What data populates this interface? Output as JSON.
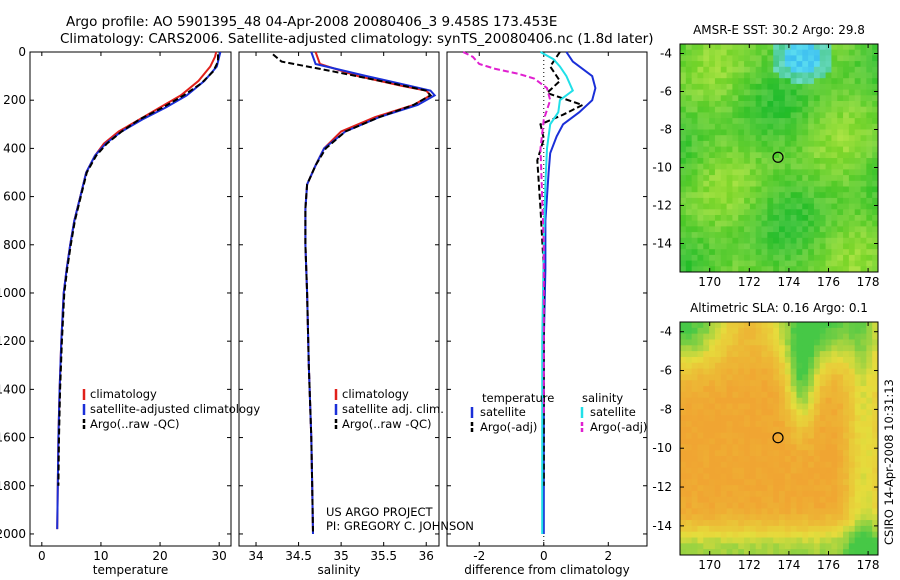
{
  "header": {
    "line1": "Argo profile: AO 5901395_48 04-Apr-2008 20080406_3 9.458S 173.453E",
    "line2": "Climatology: CARS2006. Satellite-adjusted climatology: synTS_20080406.nc (1.8d later)"
  },
  "colors": {
    "climatology": "#e0201a",
    "satellite": "#1a2fd8",
    "argo": "#000000",
    "satellite_diff": "#20e0e8",
    "argo_salinity_diff": "#e020d0",
    "sst_green": "#3cc83c",
    "sla_orange": "#f0a830"
  },
  "annotations": {
    "project": "US ARGO PROJECT",
    "pi": "PI: GREGORY C. JOHNSON",
    "side_label": "CSIRO 14-Apr-2008 10:31:13"
  },
  "chart_data": [
    {
      "id": "temperature",
      "type": "line",
      "xlabel": "temperature",
      "ylabel": "",
      "xlim": [
        -2,
        32
      ],
      "ylim": [
        0,
        2050
      ],
      "y_inverted": true,
      "xticks": [
        0,
        10,
        20,
        30
      ],
      "xtick_labels": [
        "0",
        "10",
        "20",
        "30"
      ],
      "yticks": [
        0,
        200,
        400,
        600,
        800,
        1000,
        1200,
        1400,
        1600,
        1800,
        2000
      ],
      "ytick_labels": [
        "0",
        "200",
        "400",
        "600",
        "800",
        "1000",
        "1200",
        "1400",
        "1600",
        "1800",
        "2000"
      ],
      "legend": [
        "climatology",
        "satellite-adjusted climatology",
        "Argo(..raw -QC)"
      ],
      "legend_position": "lower-middle",
      "series": [
        {
          "name": "climatology",
          "style": "solid",
          "color_key": "climatology",
          "x": [
            29.5,
            29.3,
            28.5,
            26.5,
            23.5,
            20.0,
            16.5,
            13.0,
            10.5,
            9.0,
            7.5,
            6.5,
            5.5,
            4.8,
            4.2,
            3.7,
            3.3,
            3.0,
            2.8,
            2.7,
            2.6
          ],
          "y": [
            0,
            20,
            60,
            120,
            180,
            230,
            280,
            330,
            380,
            430,
            500,
            600,
            700,
            800,
            900,
            1000,
            1200,
            1400,
            1600,
            1800,
            1980
          ]
        },
        {
          "name": "satellite-adjusted climatology",
          "style": "solid",
          "color_key": "satellite",
          "x": [
            30.2,
            30.0,
            29.6,
            27.5,
            24.5,
            21.0,
            17.0,
            13.5,
            10.8,
            9.0,
            7.5,
            6.5,
            5.5,
            4.8,
            4.2,
            3.7,
            3.3,
            3.0,
            2.8,
            2.7,
            2.6
          ],
          "y": [
            0,
            20,
            60,
            120,
            180,
            230,
            280,
            330,
            380,
            430,
            500,
            600,
            700,
            800,
            900,
            1000,
            1200,
            1400,
            1600,
            1800,
            1980
          ]
        },
        {
          "name": "Argo(..raw -QC)",
          "style": "dashed",
          "color_key": "argo",
          "x": [
            29.8,
            29.8,
            29.0,
            27.0,
            24.0,
            20.5,
            16.5,
            13.5,
            11.0,
            9.2,
            7.6,
            6.6,
            5.6,
            4.9,
            4.3,
            3.8,
            3.4,
            3.1,
            2.9,
            2.8
          ],
          "y": [
            10,
            40,
            80,
            130,
            180,
            230,
            280,
            330,
            380,
            430,
            500,
            600,
            700,
            800,
            900,
            1000,
            1200,
            1400,
            1600,
            1800
          ]
        }
      ]
    },
    {
      "id": "salinity",
      "type": "line",
      "xlabel": "salinity",
      "ylabel": "",
      "xlim": [
        33.8,
        36.15
      ],
      "ylim": [
        0,
        2050
      ],
      "y_inverted": true,
      "xticks": [
        34,
        34.5,
        35,
        35.5,
        36
      ],
      "xtick_labels": [
        "34",
        "34.5",
        "35",
        "35.5",
        "36"
      ],
      "legend": [
        "climatology",
        "satellite adj. clim.",
        "Argo(..raw -QC)"
      ],
      "legend_position": "lower-right",
      "series": [
        {
          "name": "climatology",
          "style": "solid",
          "color_key": "climatology",
          "x": [
            34.7,
            34.75,
            35.2,
            35.7,
            36.0,
            36.05,
            35.85,
            35.4,
            35.0,
            34.8,
            34.7,
            34.6,
            34.58,
            34.58,
            34.6,
            34.62,
            34.65,
            34.66,
            34.67
          ],
          "y": [
            0,
            50,
            100,
            140,
            160,
            180,
            220,
            270,
            330,
            400,
            470,
            550,
            650,
            800,
            1000,
            1300,
            1600,
            1800,
            2000
          ]
        },
        {
          "name": "satellite adj. clim.",
          "style": "solid",
          "color_key": "satellite",
          "x": [
            34.65,
            34.7,
            35.3,
            35.8,
            36.05,
            36.1,
            35.9,
            35.45,
            35.05,
            34.8,
            34.7,
            34.6,
            34.58,
            34.58,
            34.6,
            34.62,
            34.65,
            34.66,
            34.67
          ],
          "y": [
            0,
            50,
            100,
            140,
            160,
            180,
            220,
            270,
            330,
            400,
            470,
            550,
            650,
            800,
            1000,
            1300,
            1600,
            1800,
            2000
          ]
        },
        {
          "name": "Argo(..raw -QC)",
          "style": "dashed",
          "color_key": "argo",
          "x": [
            34.2,
            34.3,
            34.9,
            35.6,
            36.0,
            36.05,
            35.85,
            35.45,
            35.05,
            34.82,
            34.7,
            34.6,
            34.58,
            34.58,
            34.6,
            34.62,
            34.65,
            34.66,
            34.67
          ],
          "y": [
            10,
            40,
            80,
            130,
            160,
            180,
            220,
            270,
            330,
            400,
            470,
            550,
            650,
            800,
            1000,
            1300,
            1600,
            1800,
            1990
          ]
        }
      ]
    },
    {
      "id": "difference",
      "type": "line",
      "xlabel": "difference from climatology",
      "ylabel": "",
      "xlim": [
        -3,
        3.2
      ],
      "ylim": [
        0,
        2050
      ],
      "y_inverted": true,
      "xticks": [
        -2,
        0,
        2
      ],
      "xtick_labels": [
        "-2",
        "0",
        "2"
      ],
      "legend_groups": [
        {
          "title": "temperature",
          "items": [
            "satellite",
            "Argo(-adj)"
          ]
        },
        {
          "title": "salinity",
          "items": [
            "satellite",
            "Argo(-adj)"
          ]
        }
      ],
      "legend_position": "lower-middle",
      "series": [
        {
          "name": "temperature satellite",
          "style": "solid",
          "color_key": "satellite",
          "x": [
            0.7,
            0.9,
            1.5,
            1.6,
            1.5,
            1.1,
            0.6,
            0.4,
            0.2,
            0.15,
            0.05,
            0.05,
            0.0,
            0.0,
            0.0
          ],
          "y": [
            0,
            40,
            100,
            150,
            200,
            250,
            300,
            350,
            420,
            500,
            700,
            900,
            1200,
            1600,
            2000
          ]
        },
        {
          "name": "temperature Argo(-adj)",
          "style": "dashed",
          "color_key": "argo",
          "x": [
            0.5,
            0.2,
            0.5,
            0.1,
            1.2,
            0.6,
            -0.1,
            0.0,
            -0.2,
            -0.1,
            0.0,
            0.0,
            0.0
          ],
          "y": [
            0,
            60,
            120,
            170,
            220,
            260,
            300,
            360,
            450,
            650,
            900,
            1300,
            1800
          ]
        },
        {
          "name": "salinity satellite",
          "style": "solid",
          "color_key": "satellite_diff",
          "x": [
            -0.1,
            0.3,
            0.5,
            0.7,
            0.9,
            0.5,
            0.45,
            0.2,
            0.1,
            0.05,
            0.0,
            -0.05,
            -0.05,
            -0.05
          ],
          "y": [
            0,
            30,
            60,
            100,
            160,
            200,
            250,
            300,
            400,
            550,
            800,
            1200,
            1600,
            2000
          ]
        },
        {
          "name": "salinity Argo(-adj)",
          "style": "dashed",
          "color_key": "argo_salinity_diff",
          "x": [
            -2.5,
            -2.2,
            -2.0,
            -1.5,
            -0.8,
            -0.3,
            0.1,
            0.2,
            0.0,
            -0.1,
            0.0,
            0.0
          ],
          "y": [
            0,
            20,
            50,
            70,
            90,
            110,
            150,
            200,
            280,
            400,
            800,
            1500
          ]
        }
      ]
    },
    {
      "id": "sst_map",
      "type": "heatmap",
      "title": "AMSR-E SST: 30.2 Argo: 29.8",
      "xlim": [
        168.5,
        178.5
      ],
      "ylim": [
        -15.5,
        -3.5
      ],
      "xticks": [
        170,
        172,
        174,
        176,
        178
      ],
      "xtick_labels": [
        "170",
        "172",
        "174",
        "176",
        "178"
      ],
      "yticks": [
        -4,
        -6,
        -8,
        -10,
        -12,
        -14
      ],
      "ytick_labels": [
        "-4",
        "-6",
        "-8",
        "-10",
        "-12",
        "-14"
      ],
      "argo_location": {
        "lon": 173.45,
        "lat": -9.46
      }
    },
    {
      "id": "sla_map",
      "type": "heatmap",
      "title": "Altimetric SLA: 0.16 Argo: 0.1",
      "xlim": [
        168.5,
        178.5
      ],
      "ylim": [
        -15.5,
        -3.5
      ],
      "xticks": [
        170,
        172,
        174,
        176,
        178
      ],
      "xtick_labels": [
        "170",
        "172",
        "174",
        "176",
        "178"
      ],
      "yticks": [
        -4,
        -6,
        -8,
        -10,
        -12,
        -14
      ],
      "ytick_labels": [
        "-4",
        "-6",
        "-8",
        "-10",
        "-12",
        "-14"
      ],
      "argo_location": {
        "lon": 173.45,
        "lat": -9.46
      }
    }
  ]
}
